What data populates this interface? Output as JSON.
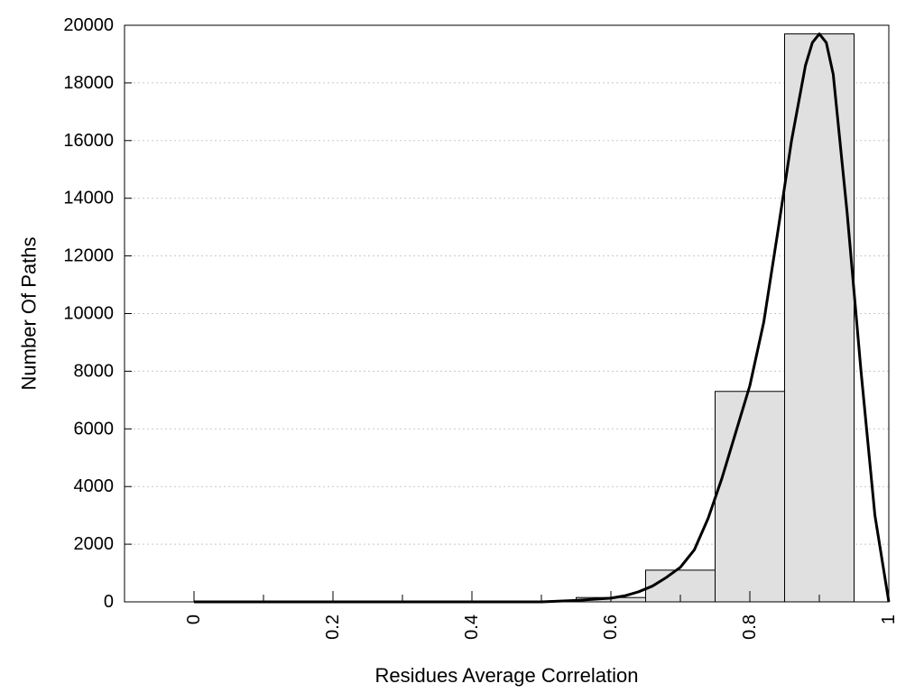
{
  "chart_data": {
    "type": "bar",
    "subtype": "histogram-with-fit-curve",
    "xlabel": "Residues Average Correlation",
    "ylabel": "Number Of Paths",
    "xlim": [
      -0.1,
      1.0
    ],
    "ylim": [
      0,
      20000
    ],
    "x_ticks": [
      0,
      0.2,
      0.4,
      0.6,
      0.8,
      1
    ],
    "x_tick_labels": [
      "0",
      "0.2",
      "0.4",
      "0.6",
      "0.8",
      "1"
    ],
    "y_ticks": [
      0,
      2000,
      4000,
      6000,
      8000,
      10000,
      12000,
      14000,
      16000,
      18000,
      20000
    ],
    "y_tick_labels": [
      "0",
      "2000",
      "4000",
      "6000",
      "8000",
      "10000",
      "12000",
      "14000",
      "16000",
      "18000",
      "20000"
    ],
    "grid": "horizontal-dotted",
    "bar_color": "#e0e0e0",
    "curve_color": "#000000",
    "bins": [
      {
        "x": 0.0,
        "value": 0
      },
      {
        "x": 0.1,
        "value": 0
      },
      {
        "x": 0.2,
        "value": 0
      },
      {
        "x": 0.3,
        "value": 0
      },
      {
        "x": 0.4,
        "value": 0
      },
      {
        "x": 0.5,
        "value": 0
      },
      {
        "x": 0.6,
        "value": 150
      },
      {
        "x": 0.7,
        "value": 1100
      },
      {
        "x": 0.8,
        "value": 7300
      },
      {
        "x": 0.9,
        "value": 19700
      }
    ],
    "bin_width": 0.1,
    "fit_curve": {
      "x": [
        0.0,
        0.5,
        0.55,
        0.6,
        0.62,
        0.64,
        0.66,
        0.68,
        0.7,
        0.72,
        0.74,
        0.76,
        0.78,
        0.8,
        0.82,
        0.84,
        0.86,
        0.88,
        0.89,
        0.9,
        0.91,
        0.92,
        0.94,
        0.96,
        0.98,
        1.0
      ],
      "y": [
        0,
        0,
        50,
        130,
        210,
        350,
        550,
        850,
        1200,
        1800,
        2900,
        4300,
        5900,
        7500,
        9700,
        12800,
        16000,
        18600,
        19400,
        19700,
        19400,
        18300,
        13500,
        8000,
        3000,
        0
      ]
    }
  }
}
